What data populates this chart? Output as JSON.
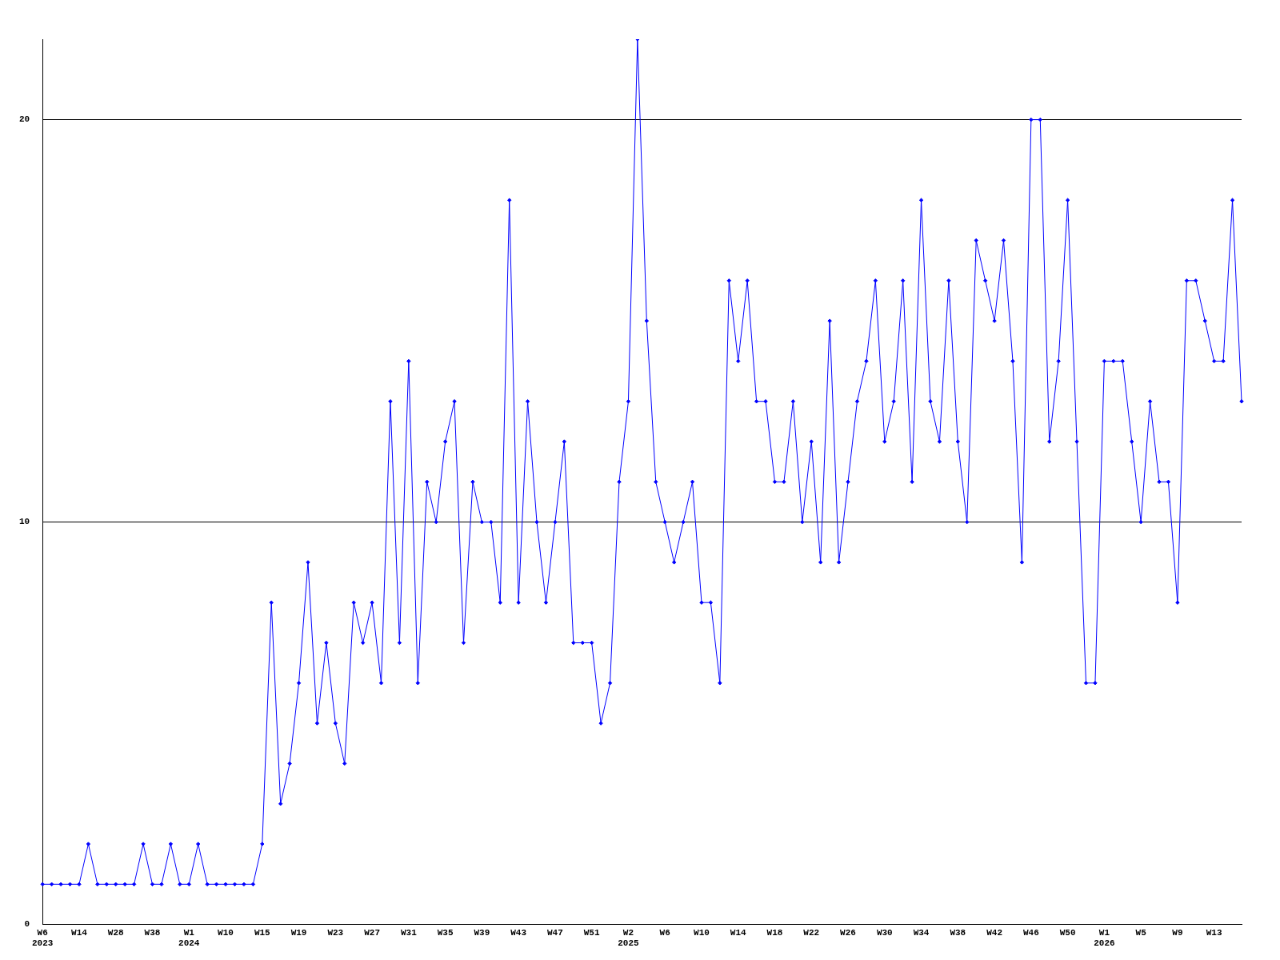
{
  "chart_data": {
    "type": "line",
    "categories": [
      "W6\n2023",
      null,
      null,
      null,
      "W14",
      null,
      null,
      null,
      "W28",
      null,
      null,
      null,
      "W38",
      null,
      null,
      null,
      "W1\n2024",
      null,
      null,
      null,
      "W10",
      null,
      null,
      null,
      "W15",
      null,
      null,
      null,
      "W19",
      null,
      null,
      null,
      "W23",
      null,
      null,
      null,
      "W27",
      null,
      null,
      null,
      "W31",
      null,
      null,
      null,
      "W35",
      null,
      null,
      null,
      "W39",
      null,
      null,
      null,
      "W43",
      null,
      null,
      null,
      "W47",
      null,
      null,
      null,
      "W51",
      null,
      null,
      null,
      "W2\n2025",
      null,
      null,
      null,
      "W6",
      null,
      null,
      null,
      "W10",
      null,
      null,
      null,
      "W14",
      null,
      null,
      null,
      "W18",
      null,
      null,
      null,
      "W22",
      null,
      null,
      null,
      "W26",
      null,
      null,
      null,
      "W30",
      null,
      null,
      null,
      "W34",
      null,
      null,
      null,
      "W38",
      null,
      null,
      null,
      "W42",
      null,
      null,
      null,
      "W46",
      null,
      null,
      null,
      "W50",
      null,
      null,
      null,
      "W1\n2026",
      null,
      null,
      null,
      "W5",
      null,
      null,
      null,
      "W9",
      null,
      null,
      null,
      "W13",
      null,
      null,
      null
    ],
    "series": [
      {
        "color": "#0000ff",
        "values": [
          1,
          1,
          1,
          1,
          1,
          2,
          1,
          1,
          1,
          1,
          1,
          2,
          1,
          1,
          2,
          1,
          1,
          2,
          1,
          1,
          1,
          1,
          1,
          1,
          2,
          8,
          3,
          4,
          6,
          9,
          5,
          7,
          5,
          4,
          8,
          7,
          8,
          6,
          13,
          7,
          14,
          6,
          11,
          10,
          12,
          13,
          7,
          11,
          10,
          10,
          8,
          18,
          8,
          13,
          10,
          8,
          10,
          12,
          7,
          7,
          7,
          5,
          6,
          11,
          13,
          22,
          15,
          11,
          10,
          9,
          10,
          11,
          8,
          8,
          6,
          16,
          14,
          16,
          13,
          13,
          11,
          11,
          13,
          10,
          12,
          9,
          15,
          9,
          11,
          13,
          14,
          16,
          12,
          13,
          16,
          11,
          18,
          13,
          12,
          16,
          12,
          10,
          17,
          16,
          15,
          17,
          14,
          9,
          20,
          20,
          12,
          14,
          18,
          12,
          6,
          6,
          14,
          14,
          14,
          12,
          10,
          13,
          11,
          11,
          8,
          16,
          16,
          15,
          14,
          14,
          18,
          13
        ]
      }
    ],
    "ylim": [
      0,
      22
    ],
    "yticks": [
      0,
      10,
      20
    ],
    "grid": "y",
    "legend": false,
    "marker": "diamond",
    "line_style": "solid"
  }
}
